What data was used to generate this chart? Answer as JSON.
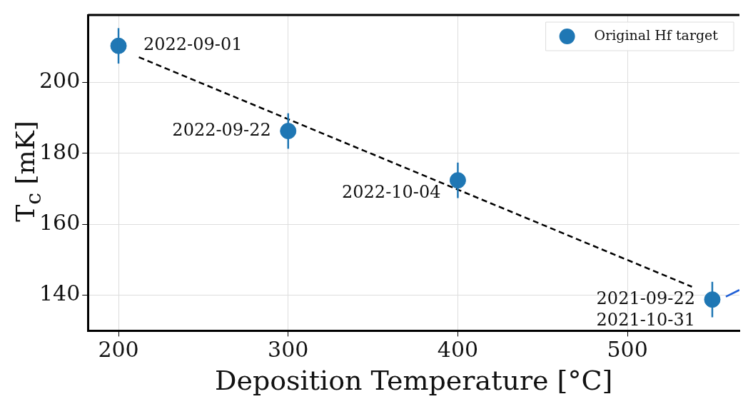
{
  "chart_data": {
    "type": "scatter",
    "xlabel": "Deposition Temperature [°C]",
    "ylabel": "T$_{c}$ [mK]",
    "xlim": [
      182,
      566
    ],
    "ylim": [
      130,
      219
    ],
    "xticks": [
      200,
      300,
      400,
      500
    ],
    "yticks": [
      140,
      160,
      180,
      200
    ],
    "grid": true,
    "legend": "top right",
    "marker": "circle",
    "series": [
      {
        "name": "Original Hf target",
        "color": "#1f77b4",
        "x": [
          200,
          300,
          400,
          550
        ],
        "values": [
          210.3,
          186.3,
          172.4,
          138.8
        ],
        "errors": [
          5,
          5,
          5,
          5
        ]
      },
      {
        "type": "line",
        "color": "#000000",
        "line_style": "dashed",
        "marker": "none",
        "x": [
          212,
          538
        ],
        "values": [
          207.1,
          142.4
        ]
      },
      {
        "type": "line",
        "color": "#1f5fd6",
        "line_style": "solid",
        "marker": "none",
        "x": [
          558,
          566
        ],
        "values": [
          139.6,
          141.5
        ]
      }
    ],
    "annotations": [
      {
        "text": "2022-09-01",
        "x": 200,
        "y": 210.3
      },
      {
        "text": "2022-09-22",
        "x": 300,
        "y": 186.3
      },
      {
        "text": "2022-10-04",
        "x": 400,
        "y": 172.4
      },
      {
        "text": "2021-09-22",
        "x": 550,
        "y": 138.8
      },
      {
        "text": "2021-10-31",
        "x": 550,
        "y": 138.8
      }
    ]
  }
}
